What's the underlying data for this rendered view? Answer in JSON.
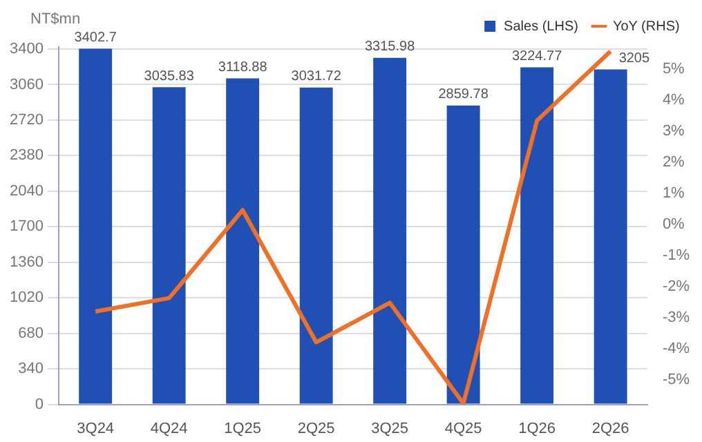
{
  "chart_data": {
    "type": "bar",
    "ylabel": "NT$mn",
    "categories": [
      "3Q24",
      "4Q24",
      "1Q25",
      "2Q25",
      "3Q25",
      "4Q25",
      "1Q26",
      "2Q26"
    ],
    "series": [
      {
        "name": "Sales (LHS)",
        "color": "#2150b4",
        "values": [
          3402.7,
          3035.83,
          3118.88,
          3031.72,
          3315.98,
          2859.78,
          3224.77,
          3205
        ],
        "value_labels": [
          "3402.7",
          "3035.83",
          "3118.88",
          "3031.72",
          "3315.98",
          "2859.78",
          "3224.77",
          "3205"
        ]
      },
      {
        "name": "YoY (RHS)",
        "type": "line",
        "axis": "y2",
        "color": "#f07028",
        "values": [
          -2.81,
          -2.38,
          0.45,
          -3.8,
          -2.53,
          -5.77,
          3.33,
          5.56
        ]
      }
    ],
    "ylim": [
      0,
      3420
    ],
    "yticks": [
      0,
      340,
      680,
      1020,
      1360,
      1700,
      2040,
      2380,
      2720,
      3060,
      3400
    ],
    "y2lim": [
      -5.8,
      5.7
    ],
    "y2ticks": [
      {
        "value": -5,
        "label": "-5%"
      },
      {
        "value": -4,
        "label": "-4%"
      },
      {
        "value": -3,
        "label": "-3%"
      },
      {
        "value": -2,
        "label": "-2%"
      },
      {
        "value": -1,
        "label": "-1%"
      },
      {
        "value": 0,
        "label": "0%"
      },
      {
        "value": 1,
        "label": "1%"
      },
      {
        "value": 2,
        "label": "2%"
      },
      {
        "value": 3,
        "label": "3%"
      },
      {
        "value": 4,
        "label": "4%"
      },
      {
        "value": 5,
        "label": "5%"
      }
    ],
    "grid": "y",
    "legend": "top right",
    "marker": "none"
  }
}
